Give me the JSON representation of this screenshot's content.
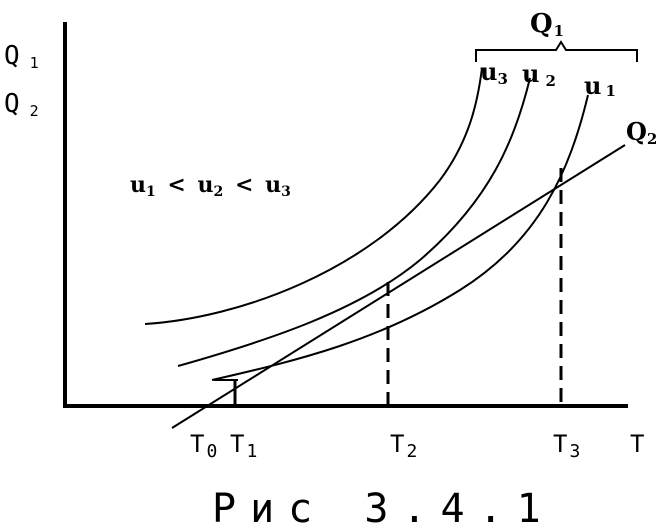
{
  "axes": {
    "y_label_line1": "Q",
    "y_label_line1_sub": "1",
    "y_label_line2": "Q",
    "y_label_line2_sub": "2",
    "x_label": "T"
  },
  "curves": {
    "group_label": "Q",
    "group_label_sub": "1",
    "u3": {
      "base": "u",
      "sub": "3"
    },
    "u2": {
      "base": "u",
      "sub": "2"
    },
    "u1": {
      "base": "u",
      "sub": "1"
    },
    "line": {
      "base": "Q",
      "sub": "2"
    }
  },
  "relation": {
    "a": "u",
    "a_sub": "1",
    "lt1": "<",
    "b": "u",
    "b_sub": "2",
    "lt2": "<",
    "c": "u",
    "c_sub": "3"
  },
  "ticks": {
    "t0": {
      "base": "T",
      "sub": "0"
    },
    "t1": {
      "base": "T",
      "sub": "1"
    },
    "t2": {
      "base": "T",
      "sub": "2"
    },
    "t3": {
      "base": "T",
      "sub": "3"
    }
  },
  "caption": "Рис 3.4.1"
}
